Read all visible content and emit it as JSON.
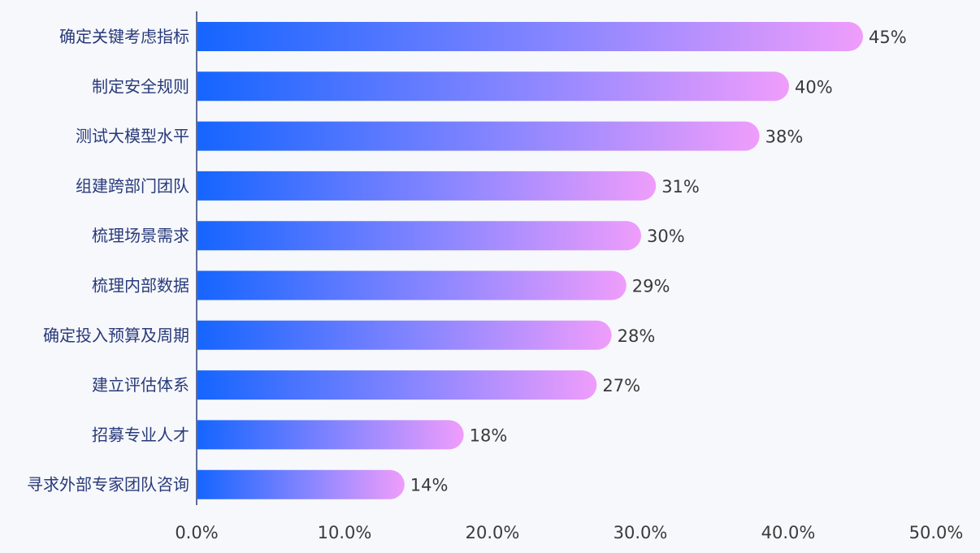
{
  "chart_data": {
    "type": "bar",
    "orientation": "horizontal",
    "categories": [
      "确定关键考虑指标",
      "制定安全规则",
      "测试大模型水平",
      "组建跨部门团队",
      "梳理场景需求",
      "梳理内部数据",
      "确定投入预算及周期",
      "建立评估体系",
      "招募专业人才",
      "寻求外部专家团队咨询"
    ],
    "values": [
      45,
      40,
      38,
      31,
      30,
      29,
      28,
      27,
      18,
      14
    ],
    "value_labels": [
      "45%",
      "40%",
      "38%",
      "31%",
      "30%",
      "29%",
      "28%",
      "27%",
      "18%",
      "14%"
    ],
    "xlim": [
      0,
      50
    ],
    "xticks": [
      0,
      10,
      20,
      30,
      40,
      50
    ],
    "xtick_labels": [
      "0.0%",
      "10.0%",
      "20.0%",
      "30.0%",
      "40.0%",
      "50.0%"
    ],
    "title": "",
    "xlabel": "",
    "ylabel": "",
    "grid": false,
    "legend": "none"
  },
  "colors": {
    "bar_start": "#1565ff",
    "bar_mid": "#8a86ff",
    "bar_end": "#ef9dfb",
    "axis": "#2c3e7a",
    "category_text": "#283a7a",
    "value_text": "#3a3a3a",
    "background": "#f7f8fc"
  }
}
